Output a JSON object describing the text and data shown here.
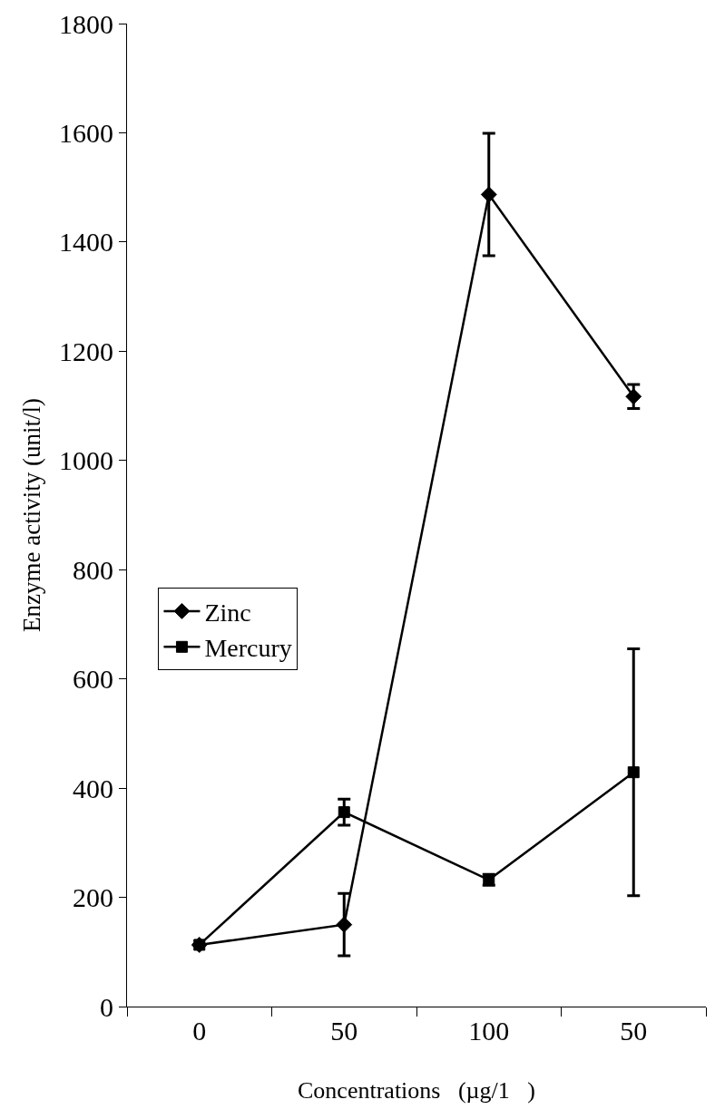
{
  "chart_data": {
    "type": "line",
    "xlabel": "Concentrations   (µg/1   )",
    "ylabel": "Enzyme activity (unit/l)",
    "categories": [
      "0",
      "50",
      "100",
      "50"
    ],
    "series": [
      {
        "name": "Zinc",
        "color": "#000000",
        "marker": "diamond",
        "values": [
          113,
          150,
          1487,
          1117
        ],
        "errors": [
          null,
          57,
          112,
          22
        ]
      },
      {
        "name": "Mercury",
        "color": "#000000",
        "marker": "square",
        "values": [
          113,
          356,
          232,
          429
        ],
        "errors": [
          null,
          24,
          10,
          226
        ]
      }
    ],
    "ylim": [
      0,
      1800
    ],
    "yticks": [
      0,
      200,
      400,
      600,
      800,
      1000,
      1200,
      1400,
      1600,
      1800
    ],
    "legend": "left",
    "line_style": "solid"
  }
}
